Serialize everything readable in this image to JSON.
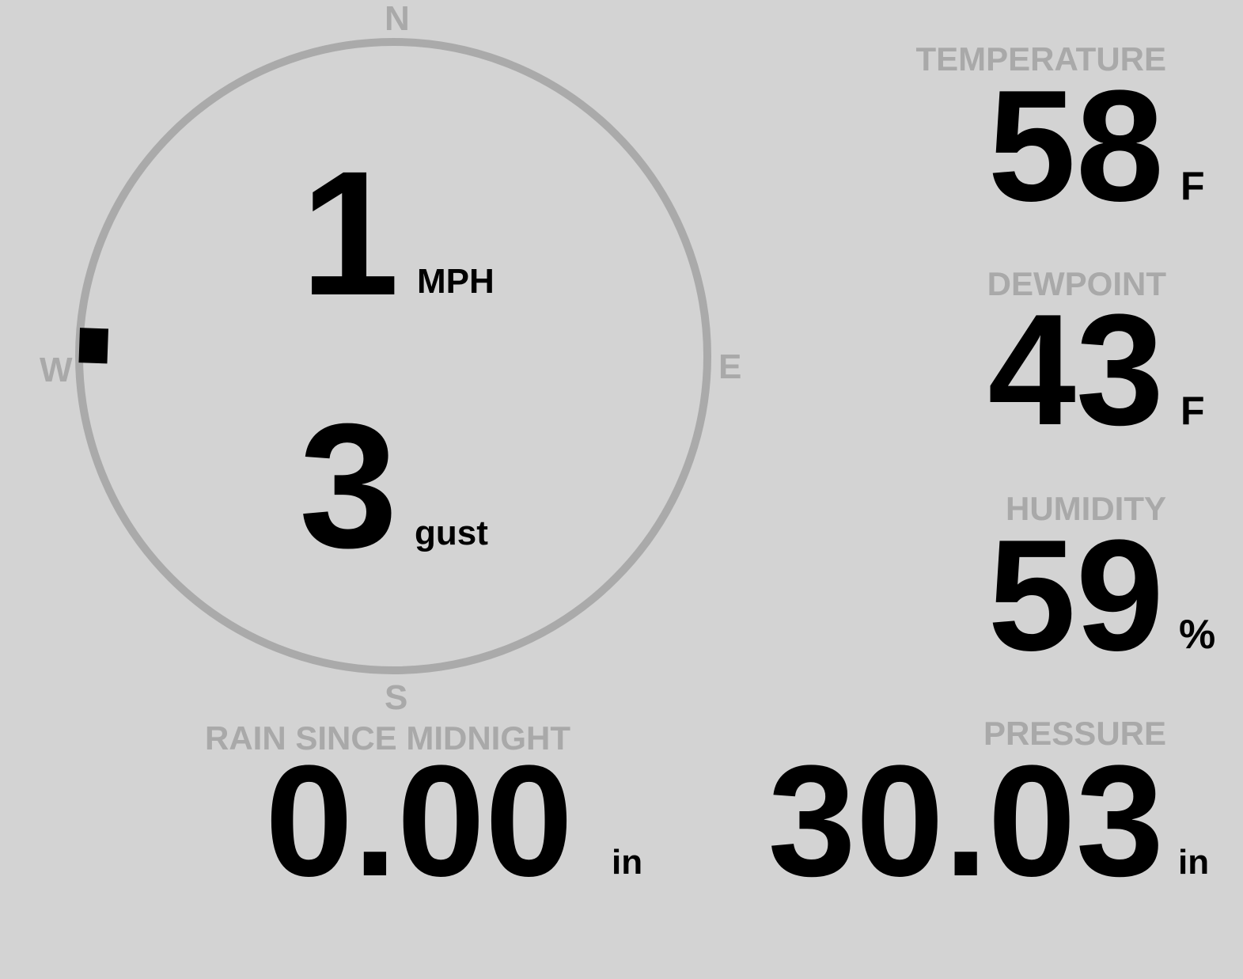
{
  "compass": {
    "n": "N",
    "s": "S",
    "e": "E",
    "w": "W",
    "wind_direction_deg": 272,
    "ring_color": "#aaaaaa"
  },
  "wind": {
    "speed": "1",
    "speed_unit": "MPH",
    "gust": "3",
    "gust_unit": "gust"
  },
  "temperature": {
    "label": "TEMPERATURE",
    "value": "58",
    "unit": "F"
  },
  "dewpoint": {
    "label": "DEWPOINT",
    "value": "43",
    "unit": "F"
  },
  "humidity": {
    "label": "HUMIDITY",
    "value": "59",
    "unit": "%"
  },
  "rain": {
    "label": "RAIN SINCE MIDNIGHT",
    "value": "0.00",
    "unit": "in"
  },
  "pressure": {
    "label": "PRESSURE",
    "value": "30.03",
    "unit": "in"
  },
  "colors": {
    "background": "#d3d3d3",
    "label": "#a9a9a9",
    "value": "#000000"
  }
}
